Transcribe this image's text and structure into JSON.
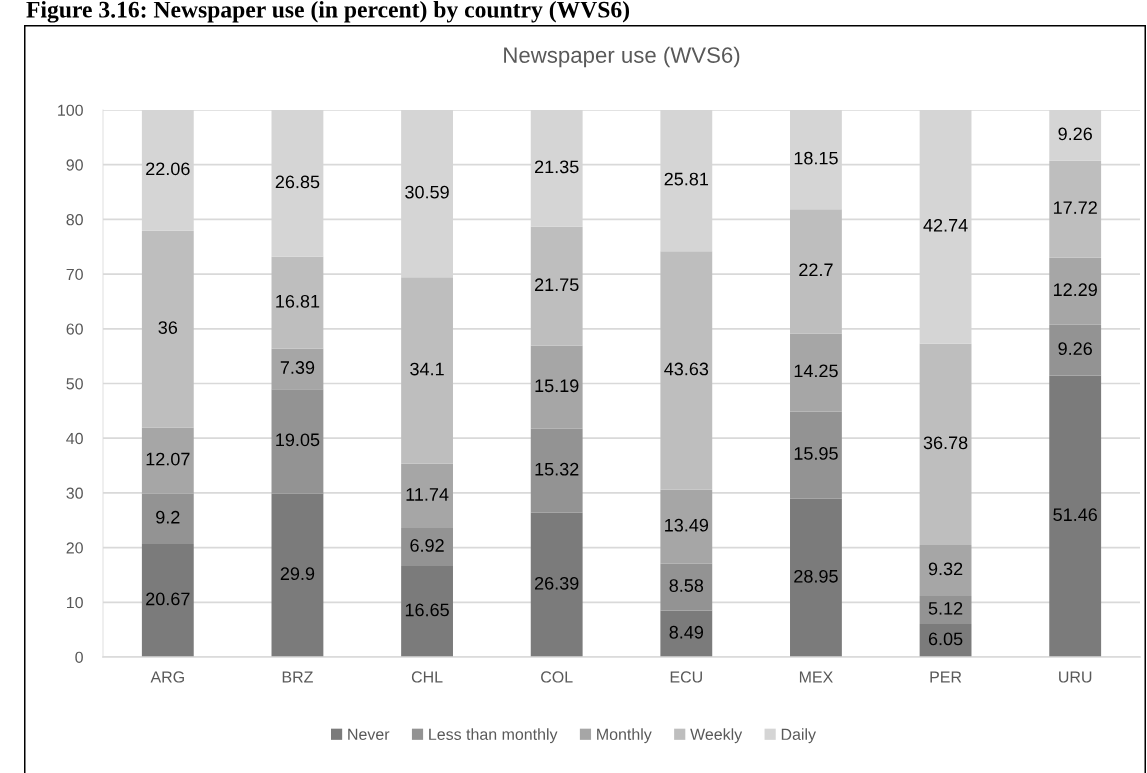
{
  "chart_data": {
    "type": "bar",
    "title": "Figure 3.16: Newspaper use (in percent) by country (WVS6)",
    "subtitle": "Newspaper use (WVS6)",
    "categories": [
      "ARG",
      "BRZ",
      "CHL",
      "COL",
      "ECU",
      "MEX",
      "PER",
      "URU"
    ],
    "series": [
      {
        "name": "Never",
        "color": "#7b7b7b",
        "values": [
          20.67,
          29.9,
          16.65,
          26.39,
          8.49,
          28.95,
          6.05,
          51.46
        ]
      },
      {
        "name": "Less than monthly",
        "color": "#939393",
        "values": [
          9.2,
          19.05,
          6.92,
          15.32,
          8.58,
          15.95,
          5.12,
          9.26
        ]
      },
      {
        "name": "Monthly",
        "color": "#a6a6a6",
        "values": [
          12.07,
          7.39,
          11.74,
          15.19,
          13.49,
          14.25,
          9.32,
          12.29
        ]
      },
      {
        "name": "Weekly",
        "color": "#bebebe",
        "values": [
          36,
          16.81,
          34.1,
          21.75,
          43.63,
          22.7,
          36.78,
          17.72
        ]
      },
      {
        "name": "Daily",
        "color": "#d5d5d5",
        "values": [
          22.06,
          26.85,
          30.59,
          21.35,
          25.81,
          18.15,
          42.74,
          9.26
        ]
      }
    ],
    "stacked": true,
    "data_labels": true,
    "ylim": [
      0,
      100
    ],
    "yticks": [
      0,
      10,
      20,
      30,
      40,
      50,
      60,
      70,
      80,
      90,
      100
    ],
    "grid": "y",
    "legend": "bottom"
  }
}
